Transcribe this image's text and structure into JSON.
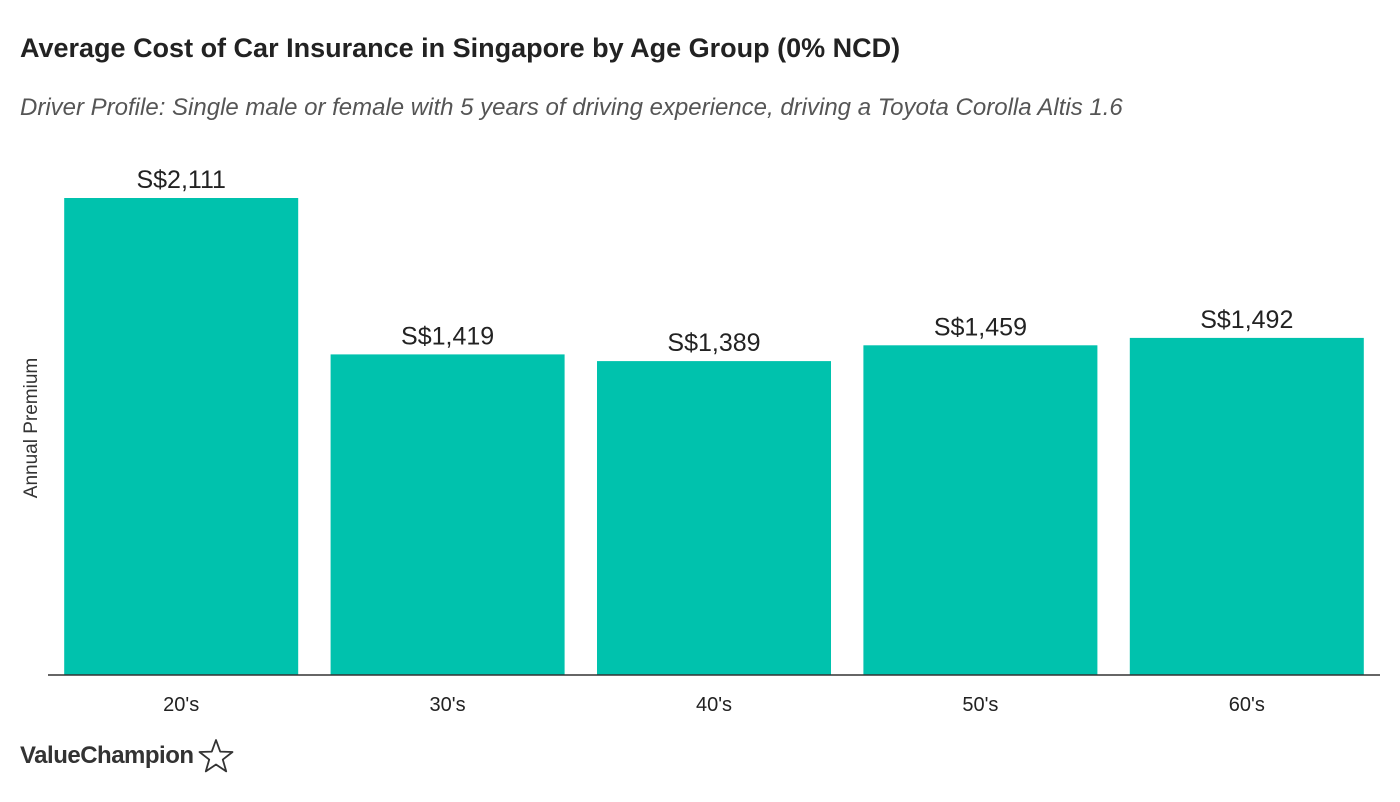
{
  "brand": {
    "name": "ValueChampion",
    "icon": "star-outline-icon"
  },
  "colors": {
    "bar": "#00c2ad",
    "axis": "#333333",
    "text": "#222222"
  },
  "chart_data": {
    "type": "bar",
    "title": "Average Cost of Car Insurance in Singapore by Age Group (0% NCD)",
    "subtitle": "Driver Profile: Single male or female with 5 years of driving experience, driving a Toyota Corolla Altis 1.6",
    "xlabel": "",
    "ylabel": "Annual Premium",
    "categories": [
      "20's",
      "30's",
      "40's",
      "50's",
      "60's"
    ],
    "values": [
      2111,
      1419,
      1389,
      1459,
      1492
    ],
    "data_labels": [
      "S$2,111",
      "S$1,419",
      "S$1,389",
      "S$1,459",
      "S$1,492"
    ],
    "ylim": [
      0,
      2111
    ],
    "grid": false,
    "legend": "none"
  }
}
